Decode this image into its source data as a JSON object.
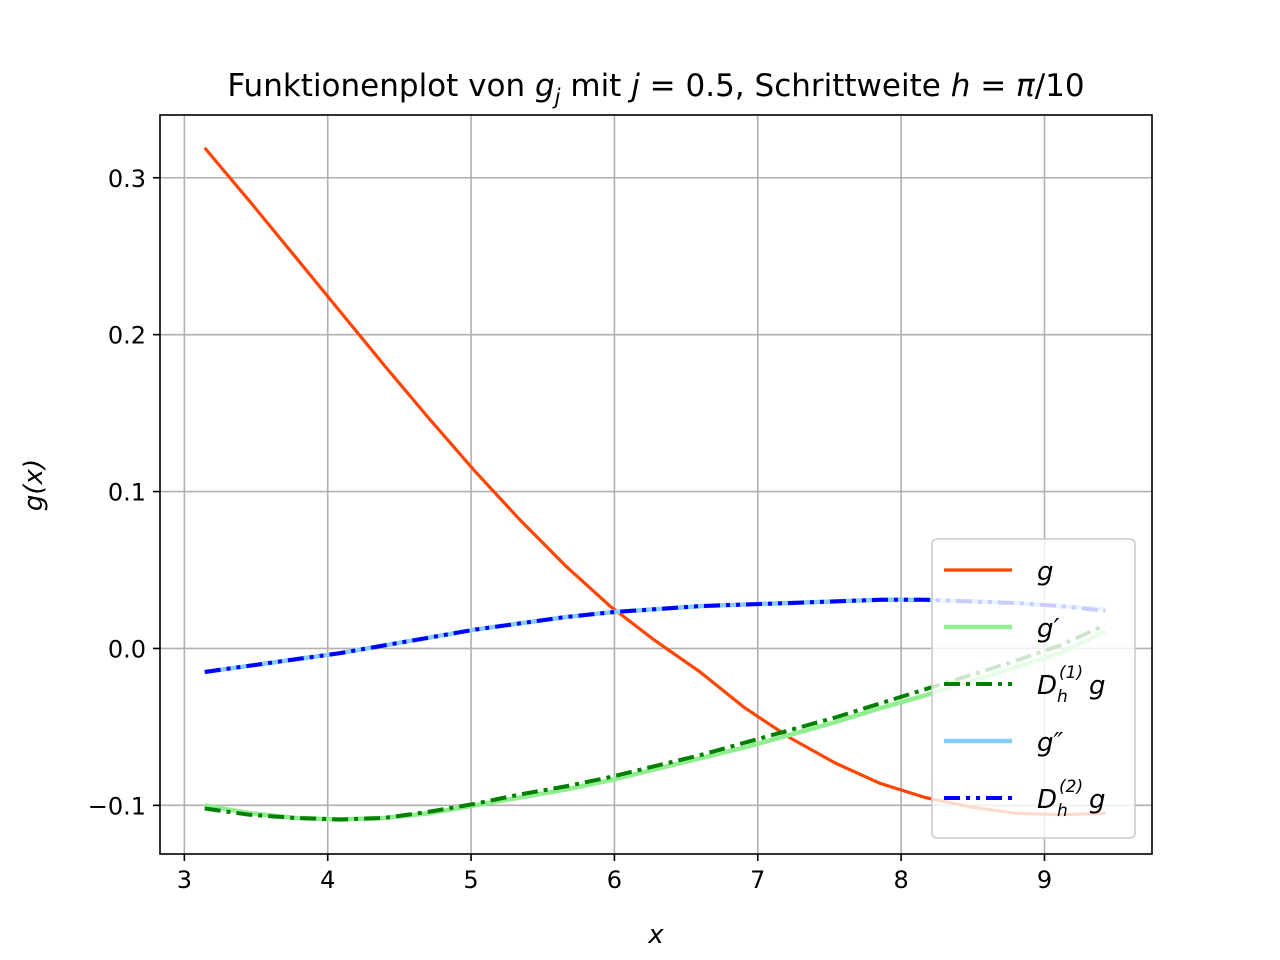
{
  "chart_data": {
    "type": "line",
    "title": "Funktionenplot von g_j mit j = 0.5, Schrittweite h = π/10",
    "title_parts": {
      "prefix": "Funktionenplot von ",
      "g": "g",
      "j_sub": "j",
      "mid": " mit ",
      "j": "j",
      "eq1": " = 0.5, Schrittweite ",
      "h": "h",
      "eq2": " = ",
      "pi": "π",
      "tail": "/10"
    },
    "xlabel": "x",
    "ylabel": "g(x)",
    "xlim": [
      2.83,
      9.75
    ],
    "ylim": [
      -0.131,
      0.34
    ],
    "xticks": [
      3,
      4,
      5,
      6,
      7,
      8,
      9
    ],
    "xtick_labels": [
      "3",
      "4",
      "5",
      "6",
      "7",
      "8",
      "9"
    ],
    "yticks": [
      -0.1,
      0.0,
      0.1,
      0.2,
      0.3
    ],
    "ytick_labels": [
      "−0.1",
      "0.0",
      "0.1",
      "0.2",
      "0.3"
    ],
    "grid": true,
    "legend_position": "lower-right",
    "x": [
      3.1416,
      3.4558,
      3.77,
      4.0841,
      4.3982,
      4.7124,
      5.0265,
      5.3407,
      5.6549,
      5.969,
      6.2832,
      6.5973,
      6.9115,
      7.2257,
      7.5398,
      7.854,
      8.1681,
      8.4823,
      8.7965,
      9.1106,
      9.4248
    ],
    "series": [
      {
        "name": "g",
        "legend_parts": {
          "main": "g",
          "sub": "",
          "sup": "",
          "tail": ""
        },
        "color": "#ff4500",
        "style": "solid",
        "values": [
          0.319,
          0.285,
          0.25,
          0.215,
          0.18,
          0.146,
          0.113,
          0.082,
          0.053,
          0.027,
          0.005,
          -0.015,
          -0.038,
          -0.057,
          -0.073,
          -0.086,
          -0.095,
          -0.101,
          -0.105,
          -0.106,
          -0.105
        ]
      },
      {
        "name": "g′",
        "legend_parts": {
          "main": "g",
          "sub": "",
          "sup": "",
          "tail": "′"
        },
        "color": "#90ee90",
        "style": "solid",
        "values": [
          -0.1,
          -0.105,
          -0.108,
          -0.109,
          -0.108,
          -0.105,
          -0.1,
          -0.095,
          -0.09,
          -0.084,
          -0.077,
          -0.07,
          -0.063,
          -0.055,
          -0.047,
          -0.038,
          -0.03,
          -0.021,
          -0.012,
          -0.003,
          0.011
        ]
      },
      {
        "name": "D_h^(1) g",
        "legend_parts": {
          "main": "D",
          "sub": "h",
          "sup": "(1)",
          "tail": "g"
        },
        "color": "#007f00",
        "style": "dashdot",
        "values": [
          -0.102,
          -0.106,
          -0.108,
          -0.109,
          -0.108,
          -0.104,
          -0.099,
          -0.093,
          -0.088,
          -0.082,
          -0.075,
          -0.068,
          -0.06,
          -0.052,
          -0.044,
          -0.035,
          -0.026,
          -0.017,
          -0.008,
          0.002,
          0.015
        ]
      },
      {
        "name": "g″",
        "legend_parts": {
          "main": "g",
          "sub": "",
          "sup": "",
          "tail": "″"
        },
        "color": "#87cefa",
        "style": "solid",
        "values": [
          -0.015,
          -0.011,
          -0.007,
          -0.003,
          0.002,
          0.007,
          0.012,
          0.016,
          0.02,
          0.023,
          0.025,
          0.027,
          0.028,
          0.029,
          0.03,
          0.031,
          0.031,
          0.03,
          0.029,
          0.027,
          0.025
        ]
      },
      {
        "name": "D_h^(2) g",
        "legend_parts": {
          "main": "D",
          "sub": "h",
          "sup": "(2)",
          "tail": "g"
        },
        "color": "#0000ff",
        "style": "dashdotdot",
        "values": [
          -0.015,
          -0.011,
          -0.007,
          -0.003,
          0.002,
          0.007,
          0.012,
          0.016,
          0.02,
          0.023,
          0.025,
          0.027,
          0.028,
          0.029,
          0.03,
          0.031,
          0.031,
          0.03,
          0.029,
          0.027,
          0.024
        ]
      }
    ]
  }
}
